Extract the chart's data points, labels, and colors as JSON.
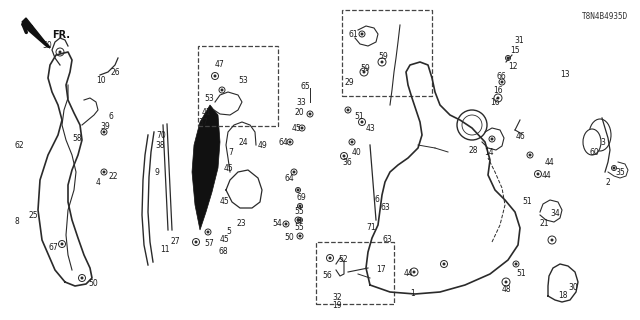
{
  "bg_color": "#ffffff",
  "diagram_id": "T8N4B4935D",
  "lc": "#2a2a2a",
  "fs": 5.5
}
